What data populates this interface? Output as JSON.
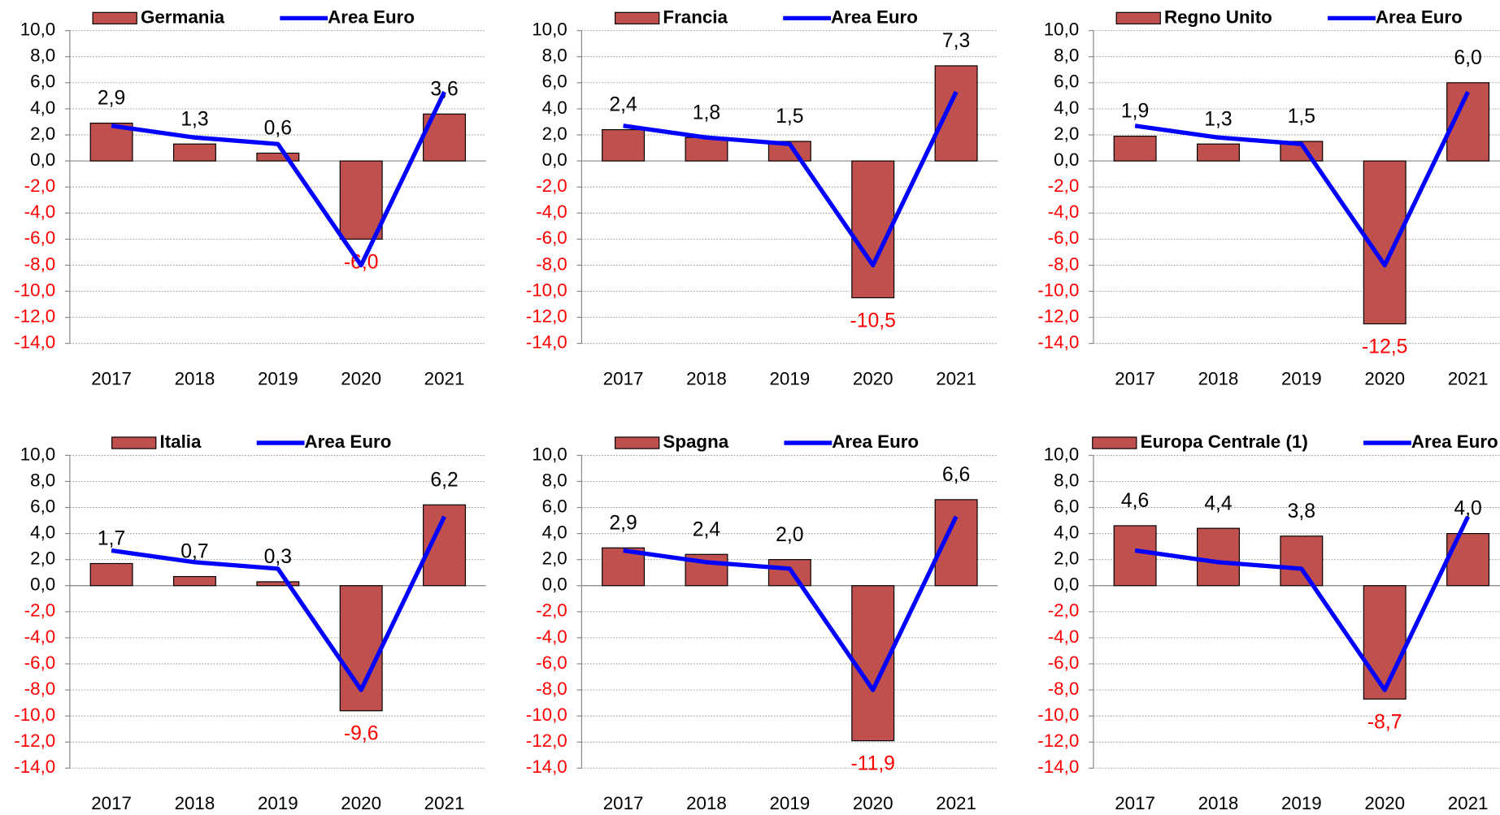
{
  "chart_data": [
    {
      "type": "bar",
      "categories": [
        "2017",
        "2018",
        "2019",
        "2020",
        "2021"
      ],
      "series": [
        {
          "name": "Germania",
          "color": "#c0504d",
          "values": [
            2.9,
            1.3,
            0.6,
            -6.0,
            3.6
          ],
          "value_labels": [
            "2,9",
            "1,3",
            "0,6",
            "-6,0",
            "3,6"
          ]
        },
        {
          "name": "Area Euro",
          "color": "#0000ff",
          "type": "line",
          "values": [
            2.7,
            1.8,
            1.3,
            -8.0,
            5.3
          ]
        }
      ],
      "ylim": [
        -14,
        10
      ],
      "yticks": [
        {
          "value": -14,
          "label": "-14,0"
        },
        {
          "value": -12,
          "label": "-12,0"
        },
        {
          "value": -10,
          "label": "-10,0"
        },
        {
          "value": -8,
          "label": "-8,0"
        },
        {
          "value": -6,
          "label": "-6,0"
        },
        {
          "value": -4,
          "label": "-4,0"
        },
        {
          "value": -2,
          "label": "-2,0"
        },
        {
          "value": 0,
          "label": "0,0"
        },
        {
          "value": 2,
          "label": "2,0"
        },
        {
          "value": 4,
          "label": "4,0"
        },
        {
          "value": 6,
          "label": "6,0"
        },
        {
          "value": 8,
          "label": "8,0"
        },
        {
          "value": 10,
          "label": "10,0"
        }
      ],
      "grid": true,
      "negative_color": "#ff0000"
    },
    {
      "type": "bar",
      "categories": [
        "2017",
        "2018",
        "2019",
        "2020",
        "2021"
      ],
      "series": [
        {
          "name": "Francia",
          "color": "#c0504d",
          "values": [
            2.4,
            1.8,
            1.5,
            -10.5,
            7.3
          ],
          "value_labels": [
            "2,4",
            "1,8",
            "1,5",
            "-10,5",
            "7,3"
          ]
        },
        {
          "name": "Area Euro",
          "color": "#0000ff",
          "type": "line",
          "values": [
            2.7,
            1.8,
            1.3,
            -8.0,
            5.3
          ]
        }
      ],
      "ylim": [
        -14,
        10
      ],
      "yticks": [
        {
          "value": -14,
          "label": "-14,0"
        },
        {
          "value": -12,
          "label": "-12,0"
        },
        {
          "value": -10,
          "label": "-10,0"
        },
        {
          "value": -8,
          "label": "-8,0"
        },
        {
          "value": -6,
          "label": "-6,0"
        },
        {
          "value": -4,
          "label": "-4,0"
        },
        {
          "value": -2,
          "label": "-2,0"
        },
        {
          "value": 0,
          "label": "0,0"
        },
        {
          "value": 2,
          "label": "2,0"
        },
        {
          "value": 4,
          "label": "4,0"
        },
        {
          "value": 6,
          "label": "6,0"
        },
        {
          "value": 8,
          "label": "8,0"
        },
        {
          "value": 10,
          "label": "10,0"
        }
      ],
      "grid": true,
      "negative_color": "#ff0000"
    },
    {
      "type": "bar",
      "categories": [
        "2017",
        "2018",
        "2019",
        "2020",
        "2021"
      ],
      "series": [
        {
          "name": "Regno Unito",
          "color": "#c0504d",
          "values": [
            1.9,
            1.3,
            1.5,
            -12.5,
            6.0
          ],
          "value_labels": [
            "1,9",
            "1,3",
            "1,5",
            "-12,5",
            "6,0"
          ]
        },
        {
          "name": "Area Euro",
          "color": "#0000ff",
          "type": "line",
          "values": [
            2.7,
            1.8,
            1.3,
            -8.0,
            5.3
          ]
        }
      ],
      "ylim": [
        -14,
        10
      ],
      "yticks": [
        {
          "value": -14,
          "label": "-14,0"
        },
        {
          "value": -12,
          "label": "-12,0"
        },
        {
          "value": -10,
          "label": "-10,0"
        },
        {
          "value": -8,
          "label": "-8,0"
        },
        {
          "value": -6,
          "label": "-6,0"
        },
        {
          "value": -4,
          "label": "-4,0"
        },
        {
          "value": -2,
          "label": "-2,0"
        },
        {
          "value": 0,
          "label": "0,0"
        },
        {
          "value": 2,
          "label": "2,0"
        },
        {
          "value": 4,
          "label": "4,0"
        },
        {
          "value": 6,
          "label": "6,0"
        },
        {
          "value": 8,
          "label": "8,0"
        },
        {
          "value": 10,
          "label": "10,0"
        }
      ],
      "grid": true,
      "negative_color": "#ff0000"
    },
    {
      "type": "bar",
      "categories": [
        "2017",
        "2018",
        "2019",
        "2020",
        "2021"
      ],
      "series": [
        {
          "name": "Italia",
          "color": "#c0504d",
          "values": [
            1.7,
            0.7,
            0.3,
            -9.6,
            6.2
          ],
          "value_labels": [
            "1,7",
            "0,7",
            "0,3",
            "-9,6",
            "6,2"
          ]
        },
        {
          "name": "Area Euro",
          "color": "#0000ff",
          "type": "line",
          "values": [
            2.7,
            1.8,
            1.3,
            -8.0,
            5.3
          ]
        }
      ],
      "ylim": [
        -14,
        10
      ],
      "yticks": [
        {
          "value": -14,
          "label": "-14,0"
        },
        {
          "value": -12,
          "label": "-12,0"
        },
        {
          "value": -10,
          "label": "-10,0"
        },
        {
          "value": -8,
          "label": "-8,0"
        },
        {
          "value": -6,
          "label": "-6,0"
        },
        {
          "value": -4,
          "label": "-4,0"
        },
        {
          "value": -2,
          "label": "-2,0"
        },
        {
          "value": 0,
          "label": "0,0"
        },
        {
          "value": 2,
          "label": "2,0"
        },
        {
          "value": 4,
          "label": "4,0"
        },
        {
          "value": 6,
          "label": "6,0"
        },
        {
          "value": 8,
          "label": "8,0"
        },
        {
          "value": 10,
          "label": "10,0"
        }
      ],
      "grid": true,
      "negative_color": "#ff0000"
    },
    {
      "type": "bar",
      "categories": [
        "2017",
        "2018",
        "2019",
        "2020",
        "2021"
      ],
      "series": [
        {
          "name": "Spagna",
          "color": "#c0504d",
          "values": [
            2.9,
            2.4,
            2.0,
            -11.9,
            6.6
          ],
          "value_labels": [
            "2,9",
            "2,4",
            "2,0",
            "-11,9",
            "6,6"
          ]
        },
        {
          "name": "Area Euro",
          "color": "#0000ff",
          "type": "line",
          "values": [
            2.7,
            1.8,
            1.3,
            -8.0,
            5.3
          ]
        }
      ],
      "ylim": [
        -14,
        10
      ],
      "yticks": [
        {
          "value": -14,
          "label": "-14,0"
        },
        {
          "value": -12,
          "label": "-12,0"
        },
        {
          "value": -10,
          "label": "-10,0"
        },
        {
          "value": -8,
          "label": "-8,0"
        },
        {
          "value": -6,
          "label": "-6,0"
        },
        {
          "value": -4,
          "label": "-4,0"
        },
        {
          "value": -2,
          "label": "-2,0"
        },
        {
          "value": 0,
          "label": "0,0"
        },
        {
          "value": 2,
          "label": "2,0"
        },
        {
          "value": 4,
          "label": "4,0"
        },
        {
          "value": 6,
          "label": "6,0"
        },
        {
          "value": 8,
          "label": "8,0"
        },
        {
          "value": 10,
          "label": "10,0"
        }
      ],
      "grid": true,
      "negative_color": "#ff0000"
    },
    {
      "type": "bar",
      "categories": [
        "2017",
        "2018",
        "2019",
        "2020",
        "2021"
      ],
      "series": [
        {
          "name": "Europa Centrale (1)",
          "color": "#c0504d",
          "values": [
            4.6,
            4.4,
            3.8,
            -8.7,
            4.0
          ],
          "value_labels": [
            "4,6",
            "4,4",
            "3,8",
            "-8,7",
            "4,0"
          ]
        },
        {
          "name": "Area Euro",
          "color": "#0000ff",
          "type": "line",
          "values": [
            2.7,
            1.8,
            1.3,
            -8.0,
            5.3
          ]
        }
      ],
      "ylim": [
        -14,
        10
      ],
      "yticks": [
        {
          "value": -14,
          "label": "-14,0"
        },
        {
          "value": -12,
          "label": "-12,0"
        },
        {
          "value": -10,
          "label": "-10,0"
        },
        {
          "value": -8,
          "label": "-8,0"
        },
        {
          "value": -6,
          "label": "-6,0"
        },
        {
          "value": -4,
          "label": "-4,0"
        },
        {
          "value": -2,
          "label": "-2,0"
        },
        {
          "value": 0,
          "label": "0,0"
        },
        {
          "value": 2,
          "label": "2,0"
        },
        {
          "value": 4,
          "label": "4,0"
        },
        {
          "value": 6,
          "label": "6,0"
        },
        {
          "value": 8,
          "label": "8,0"
        },
        {
          "value": 10,
          "label": "10,0"
        }
      ],
      "grid": true,
      "negative_color": "#ff0000"
    }
  ]
}
